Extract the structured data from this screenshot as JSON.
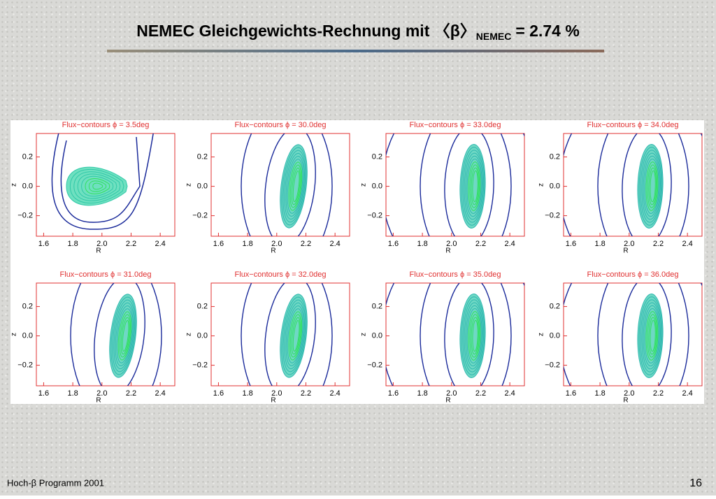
{
  "header": {
    "title": "NEMEC Gleichgewichts-Rechnung mit 〈β〉",
    "subscript": "NEMEC",
    "title_end": "= 2.74 %"
  },
  "axes": {
    "x_ticks": [
      "1.6",
      "1.8",
      "2.0",
      "2.2",
      "2.4"
    ],
    "y_ticks": [
      "0.2",
      "0.0",
      "−0.2"
    ],
    "x_label": "R",
    "y_label": "z"
  },
  "plots": [
    {
      "title": "Flux−contours ϕ =   3.5deg"
    },
    {
      "title": "Flux−contours ϕ =  30.0deg"
    },
    {
      "title": "Flux−contours ϕ =  33.0deg"
    },
    {
      "title": "Flux−contours ϕ =  34.0deg"
    },
    {
      "title": "Flux−contours ϕ =  31.0deg"
    },
    {
      "title": "Flux−contours ϕ =  32.0deg"
    },
    {
      "title": "Flux−contours ϕ =  35.0deg"
    },
    {
      "title": "Flux−contours ϕ =  36.0deg"
    }
  ],
  "footer": {
    "left": "Hoch-β Programm 2001",
    "page": "16"
  }
}
